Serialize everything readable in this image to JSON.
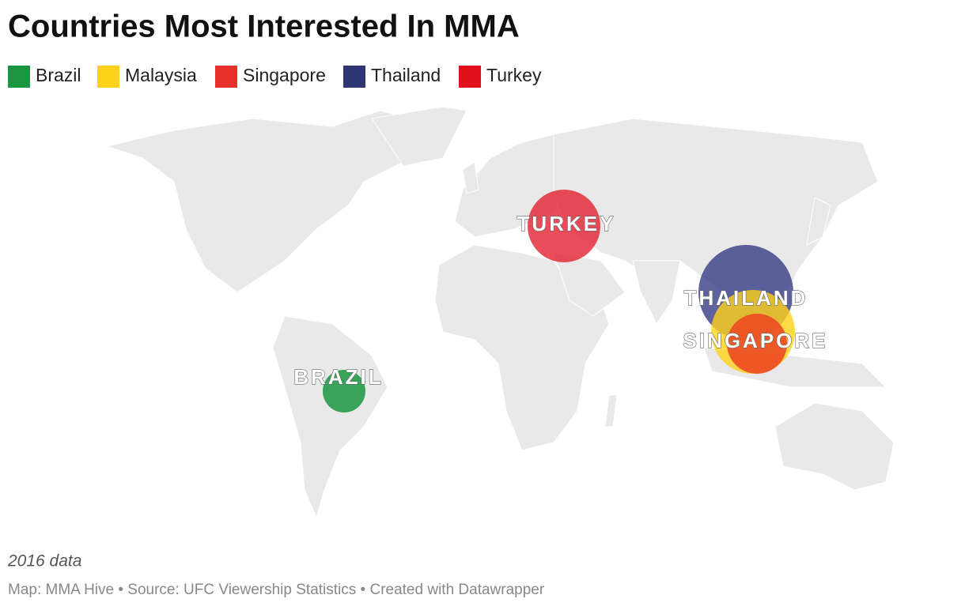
{
  "header": {
    "title": "Countries Most Interested In MMA"
  },
  "legend": [
    {
      "name": "Brazil",
      "color": "#1a9641"
    },
    {
      "name": "Malaysia",
      "color": "#ffd21a"
    },
    {
      "name": "Singapore",
      "color": "#e8302a"
    },
    {
      "name": "Thailand",
      "color": "#2e3575"
    },
    {
      "name": "Turkey",
      "color": "#e0111d"
    }
  ],
  "markers": [
    {
      "label": "BRAZIL",
      "color": "#1a9641"
    },
    {
      "label": "TURKEY",
      "color": "#e3202f"
    },
    {
      "label": "THAILAND",
      "color": "#3a4187"
    },
    {
      "label": "SINGAPORE",
      "color": "#ed4a24"
    }
  ],
  "malaysia_marker": {
    "color": "#ffd21a"
  },
  "notes": "2016 data",
  "footer": "Map: MMA Hive • Source: UFC Viewership Statistics • Created with Datawrapper"
}
